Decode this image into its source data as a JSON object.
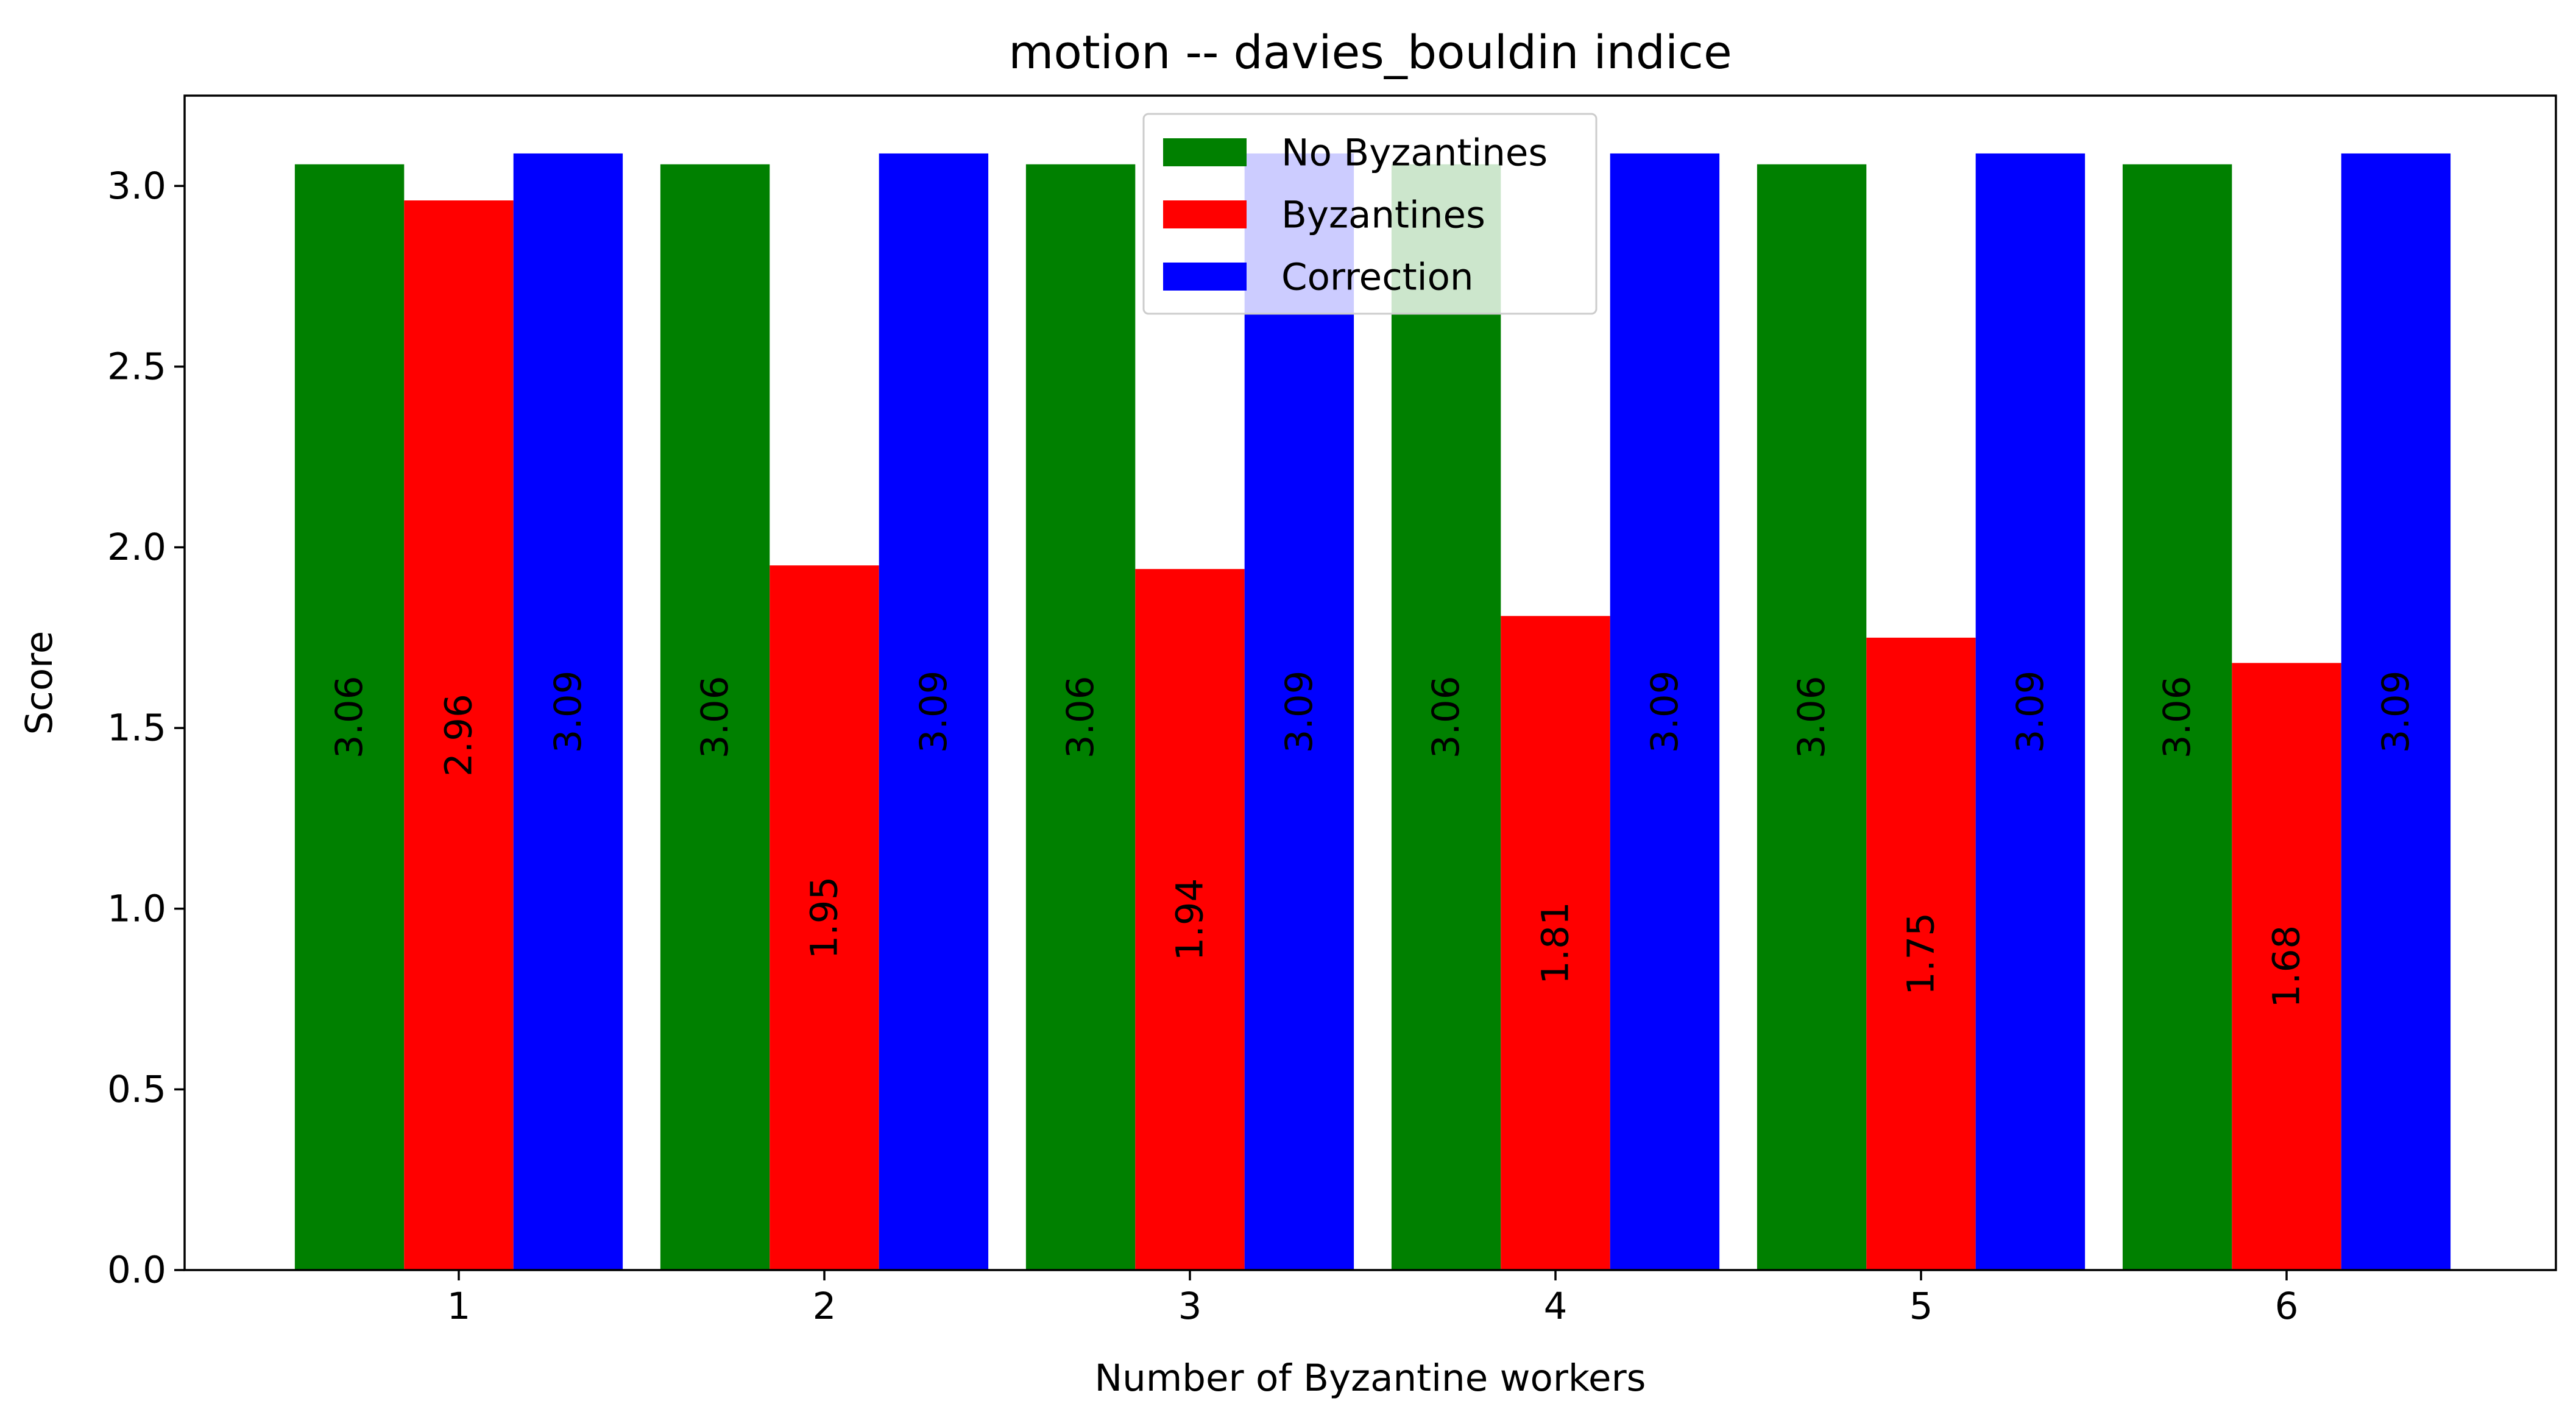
{
  "chart_data": {
    "type": "bar",
    "title": "motion -- davies_bouldin indice",
    "xlabel": "Number of Byzantine workers",
    "ylabel": "Score",
    "categories": [
      "1",
      "2",
      "3",
      "4",
      "5",
      "6"
    ],
    "ylim": [
      0,
      3.25
    ],
    "yticks": [
      0.0,
      0.5,
      1.0,
      1.5,
      2.0,
      2.5,
      3.0
    ],
    "ytick_labels": [
      "0.0",
      "0.5",
      "1.0",
      "1.5",
      "2.0",
      "2.5",
      "3.0"
    ],
    "grid": false,
    "legend_position": "upper center",
    "series": [
      {
        "name": "No Byzantines",
        "color": "#008000",
        "values": [
          3.06,
          3.06,
          3.06,
          3.06,
          3.06,
          3.06
        ],
        "labels": [
          "3.06",
          "3.06",
          "3.06",
          "3.06",
          "3.06",
          "3.06"
        ]
      },
      {
        "name": "Byzantines",
        "color": "#ff0000",
        "values": [
          2.96,
          1.95,
          1.94,
          1.81,
          1.75,
          1.68
        ],
        "labels": [
          "2.96",
          "1.95",
          "1.94",
          "1.81",
          "1.75",
          "1.68"
        ]
      },
      {
        "name": "Correction",
        "color": "#0000ff",
        "values": [
          3.09,
          3.09,
          3.09,
          3.09,
          3.09,
          3.09
        ],
        "labels": [
          "3.09",
          "3.09",
          "3.09",
          "3.09",
          "3.09",
          "3.09"
        ]
      }
    ]
  }
}
